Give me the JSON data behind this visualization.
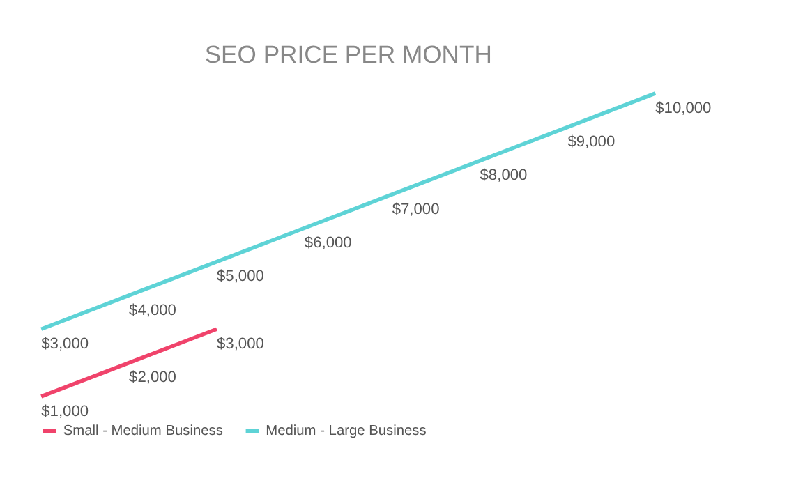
{
  "chart_data": {
    "type": "line",
    "title": "SEO PRICE PER MONTH",
    "categories": [
      null,
      null,
      null,
      null,
      null,
      null,
      null,
      null
    ],
    "series": [
      {
        "name": "Small - Medium Business",
        "color": "#f0436b",
        "values": [
          1000,
          2000,
          3000,
          null,
          null,
          null,
          null,
          null
        ],
        "value_labels": [
          "$1,000",
          "$2,000",
          "$3,000",
          null,
          null,
          null,
          null,
          null
        ]
      },
      {
        "name": "Medium - Large Business",
        "color": "#5ed3d6",
        "values": [
          3000,
          4000,
          5000,
          6000,
          7000,
          8000,
          9000,
          10000
        ],
        "value_labels": [
          "$3,000",
          "$4,000",
          "$5,000",
          "$6,000",
          "$7,000",
          "$8,000",
          "$9,000",
          "$10,000"
        ]
      }
    ],
    "legend": "bottom",
    "grid": false,
    "marker": "none",
    "line_style": "solid",
    "tick_labels": false
  }
}
